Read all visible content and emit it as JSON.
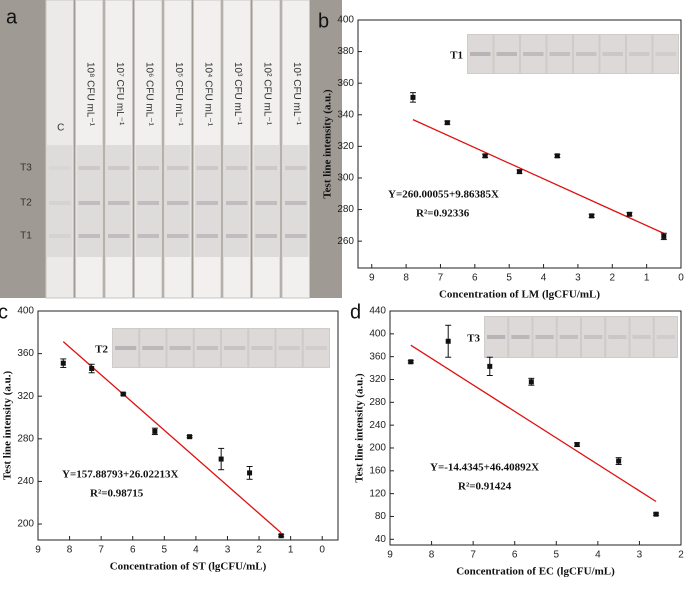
{
  "photo": {
    "letter": "a",
    "strip_labels": [
      "C",
      "10⁸ CFU mL⁻¹",
      "10⁷ CFU mL⁻¹",
      "10⁶ CFU mL⁻¹",
      "10⁵ CFU mL⁻¹",
      "10⁴ CFU mL⁻¹",
      "10³ CFU mL⁻¹",
      "10² CFU mL⁻¹",
      "10¹ CFU mL⁻¹"
    ],
    "line_labels": [
      "T3",
      "T2",
      "T1"
    ]
  },
  "chart_data": [
    {
      "type": "scatter",
      "letter": "b",
      "inset_label": "T1",
      "x_label": "Concentration of LM (lgCFU/mL)",
      "y_label": "Test line intensity (a.u.)",
      "x": [
        7.8,
        6.8,
        5.7,
        4.7,
        3.6,
        2.6,
        1.5,
        0.5
      ],
      "values": [
        351,
        335,
        314,
        304,
        314,
        276,
        277,
        263
      ],
      "error": [
        3,
        1,
        1,
        1,
        1,
        1,
        1,
        2
      ],
      "color": "#111111",
      "xlim": [
        9.4,
        0
      ],
      "xticks": [
        9,
        8,
        7,
        6,
        5,
        4,
        3,
        2,
        1,
        0
      ],
      "ylim": [
        243,
        400
      ],
      "yticks": [
        260,
        280,
        300,
        320,
        340,
        360,
        380,
        400
      ],
      "fit": {
        "label": "Y=260.00055+9.86385X",
        "r2_label": "R²=0.92336",
        "intercept": 260.00055,
        "slope": 9.86385,
        "color": "#e01010"
      }
    },
    {
      "type": "scatter",
      "letter": "c",
      "inset_label": "T2",
      "x_label": "Concentration of ST (lgCFU/mL)",
      "y_label": "Test line intensity (a.u.)",
      "x": [
        8.2,
        7.3,
        6.3,
        5.3,
        4.2,
        3.2,
        2.3,
        1.3
      ],
      "values": [
        351,
        346,
        322,
        287,
        282,
        261,
        248,
        189
      ],
      "error": [
        4,
        4,
        1,
        3,
        1,
        10,
        6,
        1
      ],
      "color": "#111111",
      "xlim": [
        9,
        -0.5
      ],
      "xticks": [
        9,
        8,
        7,
        6,
        5,
        4,
        3,
        2,
        1,
        0
      ],
      "ylim": [
        185,
        400
      ],
      "yticks": [
        200,
        240,
        280,
        320,
        360,
        400
      ],
      "fit": {
        "label": "Y=157.88793+26.02213X",
        "r2_label": "R²=0.98715",
        "intercept": 157.88793,
        "slope": 26.02213,
        "color": "#e01010"
      }
    },
    {
      "type": "scatter",
      "letter": "d",
      "inset_label": "T3",
      "x_label": "Concentration of EC (lgCFU/mL)",
      "y_label": "Test line intensity (a.u.)",
      "x": [
        8.5,
        7.6,
        6.6,
        5.6,
        4.5,
        3.5,
        2.6
      ],
      "values": [
        351,
        387,
        343,
        316,
        206,
        177,
        84
      ],
      "error": [
        2,
        28,
        16,
        6,
        3,
        6,
        2
      ],
      "color": "#111111",
      "xlim": [
        9,
        2
      ],
      "xticks": [
        9,
        8,
        7,
        6,
        5,
        4,
        3,
        2
      ],
      "ylim": [
        30,
        440
      ],
      "yticks": [
        40,
        80,
        120,
        160,
        200,
        240,
        280,
        320,
        360,
        400,
        440
      ],
      "fit": {
        "label": "Y=-14.4345+46.40892X",
        "r2_label": "R²=0.91424",
        "intercept": -14.4345,
        "slope": 46.40892,
        "color": "#e01010"
      }
    }
  ]
}
